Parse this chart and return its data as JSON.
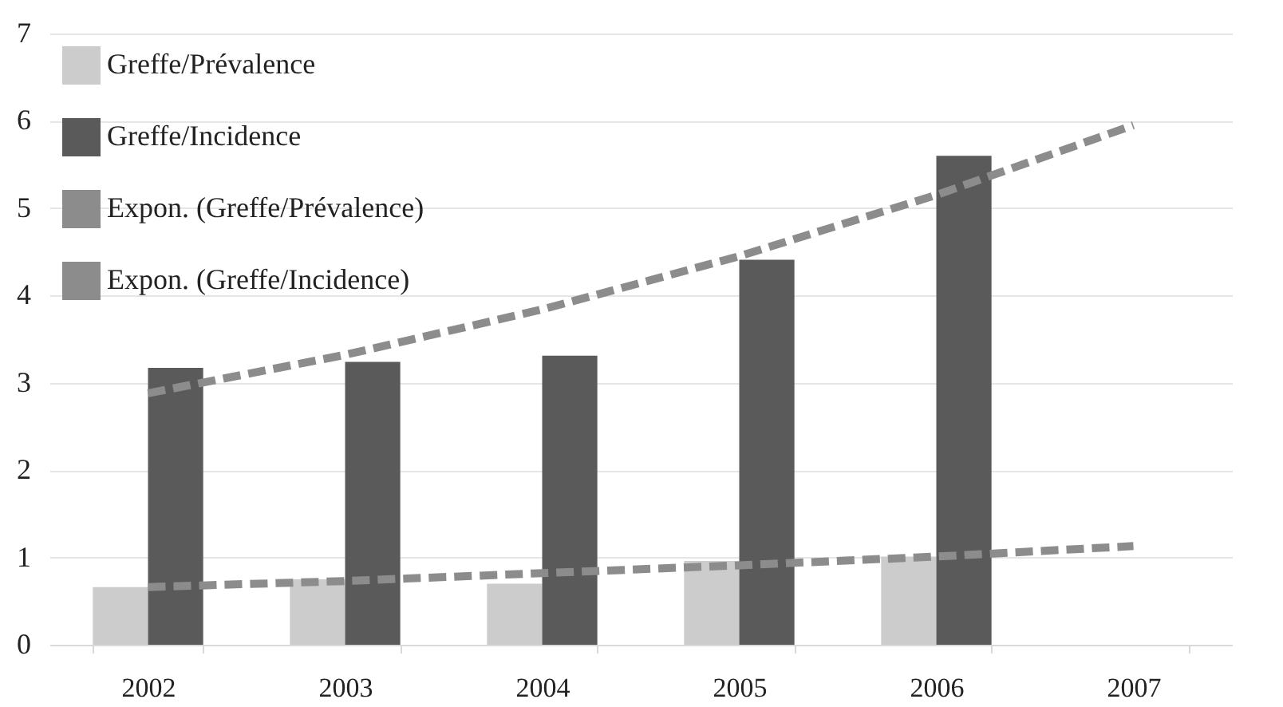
{
  "chart_data": {
    "type": "bar",
    "categories": [
      "2002",
      "2003",
      "2004",
      "2005",
      "2006",
      "2007"
    ],
    "series": [
      {
        "name": "Greffe/Prévalence",
        "color": "#cccccc",
        "values": [
          0.66,
          0.75,
          0.7,
          0.96,
          1.01,
          null
        ]
      },
      {
        "name": "Greffe/Incidence",
        "color": "#5a5a5a",
        "values": [
          3.17,
          3.24,
          3.31,
          4.41,
          5.6,
          null
        ]
      },
      {
        "name": "Expon. (Greffe/Prévalence)",
        "type": "line",
        "color": "#8c8c8c",
        "line_style": "dashed",
        "marker": "none",
        "values": [
          0.66,
          0.73,
          0.82,
          0.91,
          1.01,
          1.13
        ]
      },
      {
        "name": "Expon. (Greffe/Incidence)",
        "type": "line",
        "color": "#8c8c8c",
        "line_style": "dashed",
        "marker": "none",
        "values": [
          2.88,
          3.32,
          3.84,
          4.45,
          5.15,
          5.95
        ]
      }
    ],
    "ylim": [
      0,
      7
    ],
    "yticks": [
      0,
      1,
      2,
      3,
      4,
      5,
      6,
      7
    ],
    "grid": "y",
    "legend": "top left"
  }
}
